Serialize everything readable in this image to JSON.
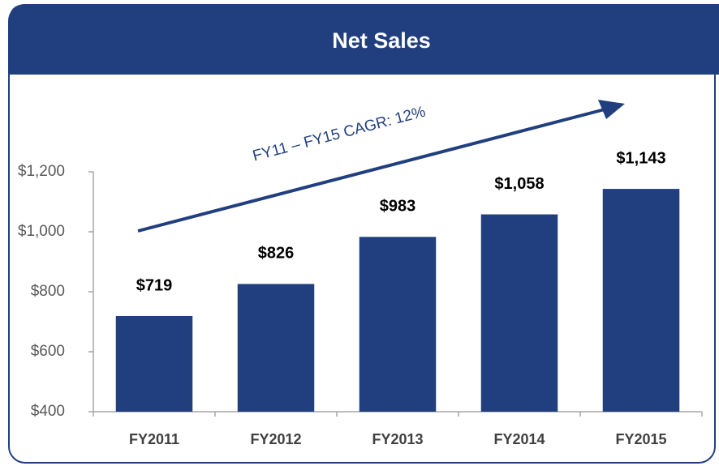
{
  "chart_data": {
    "type": "bar",
    "title": "Net Sales",
    "annotation": "FY11 – FY15 CAGR: 12%",
    "categories": [
      "FY2011",
      "FY2012",
      "FY2013",
      "FY2014",
      "FY2015"
    ],
    "values": [
      719,
      826,
      983,
      1058,
      1143
    ],
    "value_labels": [
      "$719",
      "$826",
      "$983",
      "$1,058",
      "$1,143"
    ],
    "color": "#213f7f",
    "ylim": [
      400,
      1200
    ],
    "yticks": [
      {
        "value": 400,
        "label": "$400"
      },
      {
        "value": 600,
        "label": "$600"
      },
      {
        "value": 800,
        "label": "$800"
      },
      {
        "value": 1000,
        "label": "$1,000"
      },
      {
        "value": 1200,
        "label": "$1,200"
      }
    ],
    "grid": false
  }
}
